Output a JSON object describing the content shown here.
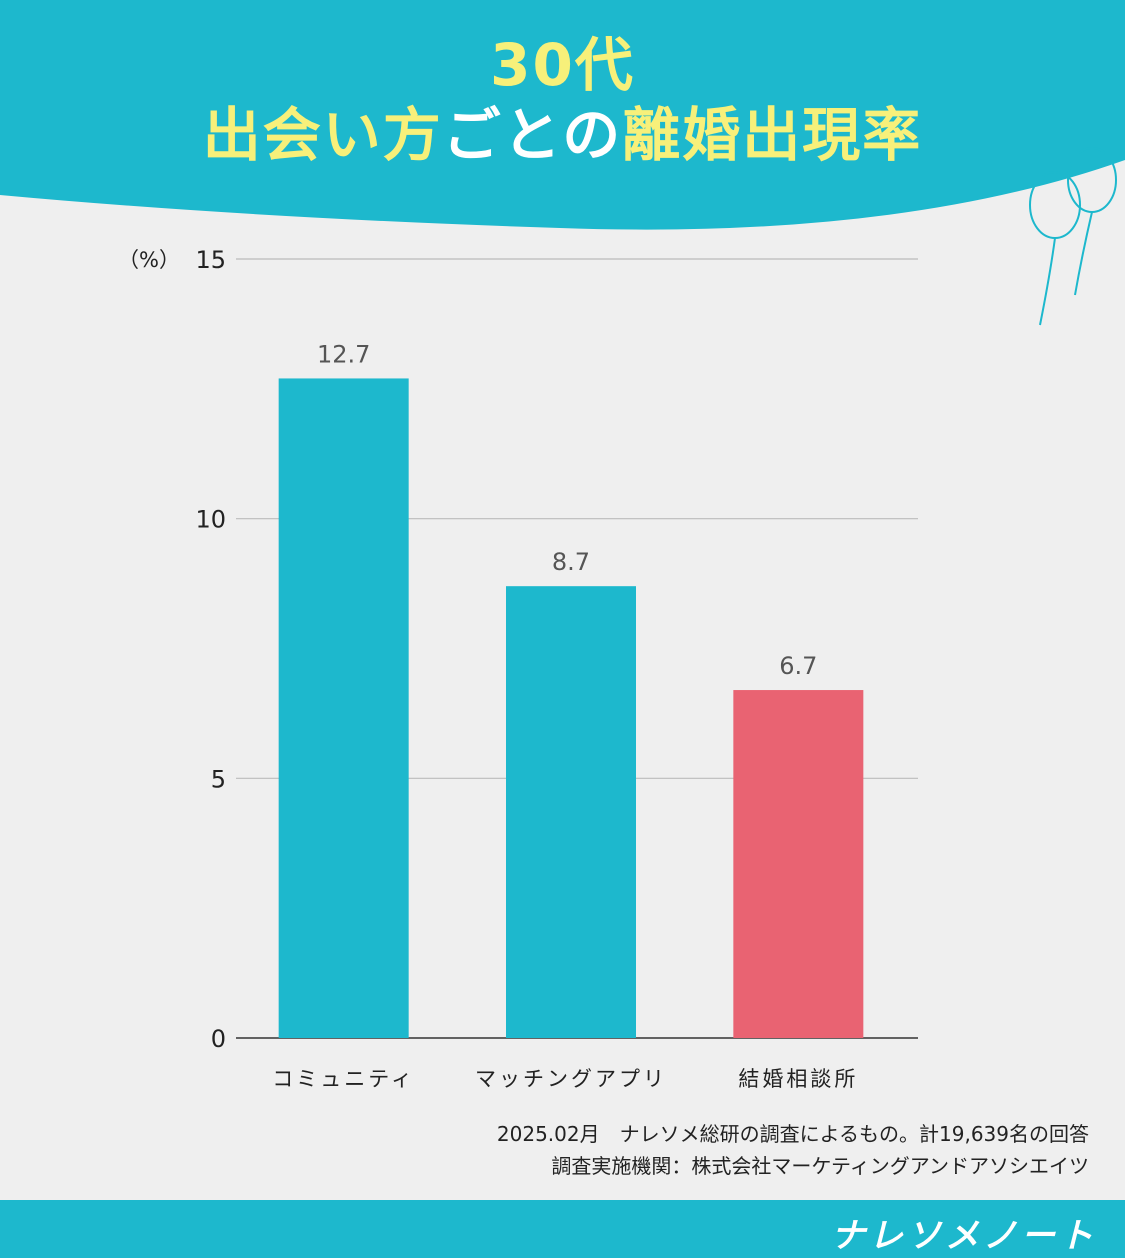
{
  "title": {
    "line1": "30代",
    "line2_part1": "出会い方",
    "line2_part2": "ごとの",
    "line2_part3": "離婚出現率"
  },
  "colors": {
    "header": "#1db8cd",
    "bar": "#1db8cd",
    "highlight": "#e96372",
    "title_text": "#f7f07a"
  },
  "chart_data": {
    "type": "bar",
    "categories": [
      "コミュニティ",
      "マッチングアプリ",
      "結婚相談所"
    ],
    "values": [
      12.7,
      8.7,
      6.7
    ],
    "value_labels": [
      "12.7",
      "8.7",
      "6.7"
    ],
    "highlight_index": 2,
    "ylabel": "（%）",
    "ylim": [
      0,
      15
    ],
    "yticks": [
      0,
      5,
      10,
      15
    ],
    "grid": true
  },
  "source": {
    "line1": "2025.02月　ナレソメ総研の調査によるもの。計19,639名の回答",
    "line2": "調査実施機関：株式会社マーケティングアンドアソシエイツ"
  },
  "brand": "ナレソメノート"
}
